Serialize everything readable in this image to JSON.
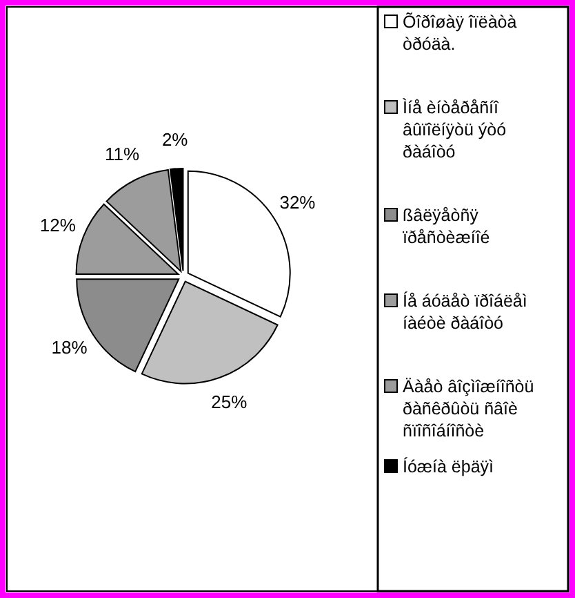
{
  "chart_data": {
    "type": "pie",
    "categories": [
      "Õîðîøàÿ îïëàòà òðóäà.",
      "Ìíå èíòåðåñíî âûïîëíÿòü ýòó ðàáîòó",
      "ßâëÿåòñÿ ïðåñòèæíîé",
      "Íå áóäåò ïðîáëåì íàéòè ðàáîòó",
      "Äàåò âîçìîæíîñòü ðàñêðûòü ñâîè ñïîñîáíîñòè",
      "Íóæíà ëþäÿì"
    ],
    "values": [
      32,
      25,
      18,
      12,
      11,
      2
    ],
    "colors": [
      "#ffffff",
      "#c0c0c0",
      "#8c8c8c",
      "#9c9c9c",
      "#9c9c9c",
      "#000000"
    ],
    "value_labels": [
      "32%",
      "25%",
      "18%",
      "12%",
      "11%",
      "2%"
    ],
    "legend": "right"
  }
}
